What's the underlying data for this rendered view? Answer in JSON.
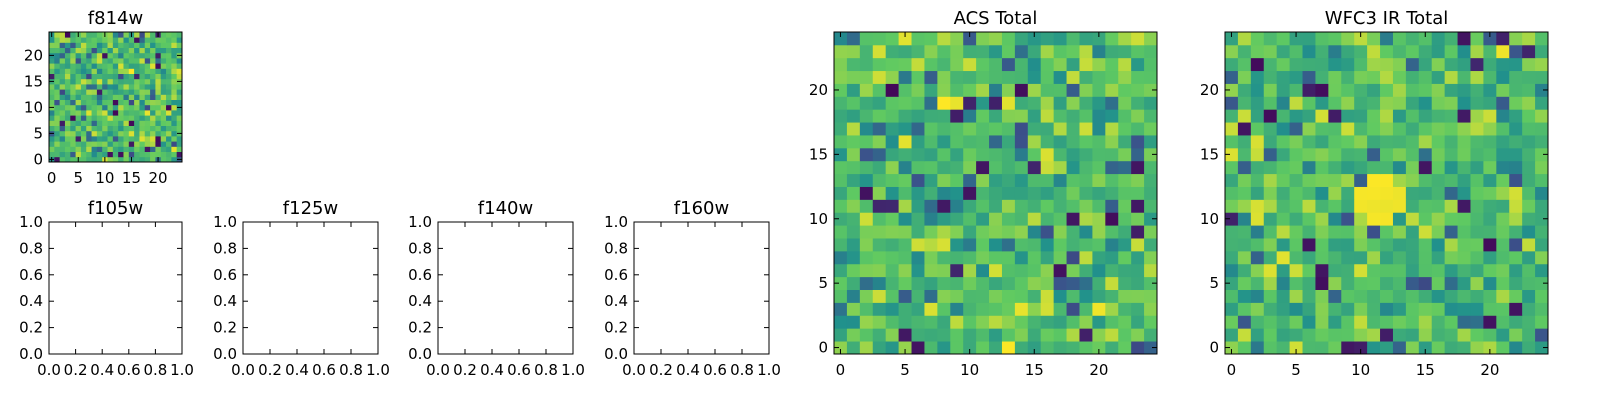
{
  "colors": {
    "background": "#ffffff",
    "axis": "#000000",
    "viridis": [
      "#440154",
      "#3b528b",
      "#21918c",
      "#5ec962",
      "#fde725"
    ]
  },
  "chart_data": [
    {
      "type": "heatmap",
      "title": "f814w",
      "grid": [
        25,
        25
      ],
      "seed": 814,
      "xticks": [
        "0",
        "5",
        "10",
        "15",
        "20"
      ],
      "xtick_values": [
        0,
        5,
        10,
        15,
        20
      ],
      "yticks": [
        "0",
        "5",
        "10",
        "15",
        "20"
      ],
      "ytick_values": [
        0,
        5,
        10,
        15,
        20
      ],
      "xlim": [
        -0.5,
        24.5
      ],
      "ylim": [
        -0.5,
        24.5
      ],
      "colormap": "viridis"
    },
    {
      "type": "heatmap",
      "title": "ACS Total",
      "grid": [
        25,
        25
      ],
      "seed": 2024,
      "xticks": [
        "0",
        "5",
        "10",
        "15",
        "20"
      ],
      "xtick_values": [
        0,
        5,
        10,
        15,
        20
      ],
      "yticks": [
        "0",
        "5",
        "10",
        "15",
        "20"
      ],
      "ytick_values": [
        0,
        5,
        10,
        15,
        20
      ],
      "xlim": [
        -0.5,
        24.5
      ],
      "ylim": [
        -0.5,
        24.5
      ],
      "colormap": "viridis"
    },
    {
      "type": "heatmap",
      "title": "WFC3 IR Total",
      "grid": [
        25,
        25
      ],
      "seed": 3110,
      "bright_source": [
        11.5,
        11.5
      ],
      "xticks": [
        "0",
        "5",
        "10",
        "15",
        "20"
      ],
      "xtick_values": [
        0,
        5,
        10,
        15,
        20
      ],
      "yticks": [
        "0",
        "5",
        "10",
        "15",
        "20"
      ],
      "ytick_values": [
        0,
        5,
        10,
        15,
        20
      ],
      "xlim": [
        -0.5,
        24.5
      ],
      "ylim": [
        -0.5,
        24.5
      ],
      "colormap": "viridis"
    },
    {
      "type": "scatter",
      "title": "f105w",
      "xticks": [
        "0.0",
        "0.2",
        "0.4",
        "0.6",
        "0.8",
        "1.0"
      ],
      "xtick_values": [
        0,
        0.2,
        0.4,
        0.6,
        0.8,
        1.0
      ],
      "yticks": [
        "0.0",
        "0.2",
        "0.4",
        "0.6",
        "0.8",
        "1.0"
      ],
      "ytick_values": [
        0,
        0.2,
        0.4,
        0.6,
        0.8,
        1.0
      ],
      "xlim": [
        0,
        1
      ],
      "ylim": [
        0,
        1
      ],
      "values": []
    },
    {
      "type": "scatter",
      "title": "f125w",
      "xticks": [
        "0.0",
        "0.2",
        "0.4",
        "0.6",
        "0.8",
        "1.0"
      ],
      "xtick_values": [
        0,
        0.2,
        0.4,
        0.6,
        0.8,
        1.0
      ],
      "yticks": [
        "0.0",
        "0.2",
        "0.4",
        "0.6",
        "0.8",
        "1.0"
      ],
      "ytick_values": [
        0,
        0.2,
        0.4,
        0.6,
        0.8,
        1.0
      ],
      "xlim": [
        0,
        1
      ],
      "ylim": [
        0,
        1
      ],
      "values": []
    },
    {
      "type": "scatter",
      "title": "f140w",
      "xticks": [
        "0.0",
        "0.2",
        "0.4",
        "0.6",
        "0.8",
        "1.0"
      ],
      "xtick_values": [
        0,
        0.2,
        0.4,
        0.6,
        0.8,
        1.0
      ],
      "yticks": [
        "0.0",
        "0.2",
        "0.4",
        "0.6",
        "0.8",
        "1.0"
      ],
      "ytick_values": [
        0,
        0.2,
        0.4,
        0.6,
        0.8,
        1.0
      ],
      "xlim": [
        0,
        1
      ],
      "ylim": [
        0,
        1
      ],
      "values": []
    },
    {
      "type": "scatter",
      "title": "f160w",
      "xticks": [
        "0.0",
        "0.2",
        "0.4",
        "0.6",
        "0.8",
        "1.0"
      ],
      "xtick_values": [
        0,
        0.2,
        0.4,
        0.6,
        0.8,
        1.0
      ],
      "yticks": [
        "0.0",
        "0.2",
        "0.4",
        "0.6",
        "0.8",
        "1.0"
      ],
      "ytick_values": [
        0,
        0.2,
        0.4,
        0.6,
        0.8,
        1.0
      ],
      "xlim": [
        0,
        1
      ],
      "ylim": [
        0,
        1
      ],
      "values": []
    }
  ]
}
